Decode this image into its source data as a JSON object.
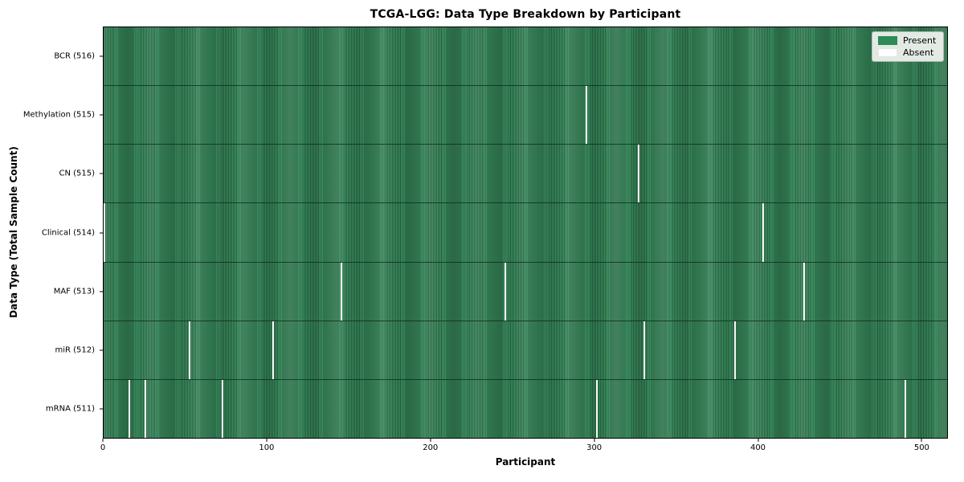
{
  "title": "TCGA-LGG: Data Type Breakdown by Participant",
  "xlabel": "Participant",
  "ylabel": "Data Type (Total Sample Count)",
  "legend": {
    "present_label": "Present",
    "absent_label": "Absent",
    "position": "upper right"
  },
  "colors": {
    "present": "#2e8b57",
    "present_stripe_dark": "#225c3b",
    "present_stripe_light": "#3d8e61",
    "absent": "#f7f7f5",
    "legend_bg": "#e2eae3",
    "legend_border": "#b3b9b3",
    "axis": "#000000"
  },
  "chart_data": {
    "type": "heatmap",
    "title": "TCGA-LGG: Data Type Breakdown by Participant",
    "xlabel": "Participant",
    "ylabel": "Data Type (Total Sample Count)",
    "x_ticks": [
      0,
      100,
      200,
      300,
      400,
      500
    ],
    "x_range": [
      0,
      516
    ],
    "total_participants": 516,
    "grid": false,
    "legend_entries": [
      "Present",
      "Absent"
    ],
    "legend_position": "upper right",
    "rows": [
      {
        "label": "BCR (516)",
        "data_type": "BCR",
        "present_count": 516,
        "absent_participants": []
      },
      {
        "label": "Methylation (515)",
        "data_type": "Methylation",
        "present_count": 515,
        "absent_participants": [
          295
        ]
      },
      {
        "label": "CN (515)",
        "data_type": "CN",
        "present_count": 515,
        "absent_participants": [
          327
        ]
      },
      {
        "label": "Clinical (514)",
        "data_type": "Clinical",
        "present_count": 514,
        "absent_participants": [
          0,
          403
        ]
      },
      {
        "label": "MAF (513)",
        "data_type": "MAF",
        "present_count": 513,
        "absent_participants": [
          145,
          245,
          428
        ]
      },
      {
        "label": "miR (512)",
        "data_type": "miR",
        "present_count": 512,
        "absent_participants": [
          52,
          103,
          330,
          386
        ]
      },
      {
        "label": "mRNA (511)",
        "data_type": "mRNA",
        "present_count": 511,
        "absent_participants": [
          15,
          25,
          72,
          301,
          490
        ]
      }
    ]
  }
}
